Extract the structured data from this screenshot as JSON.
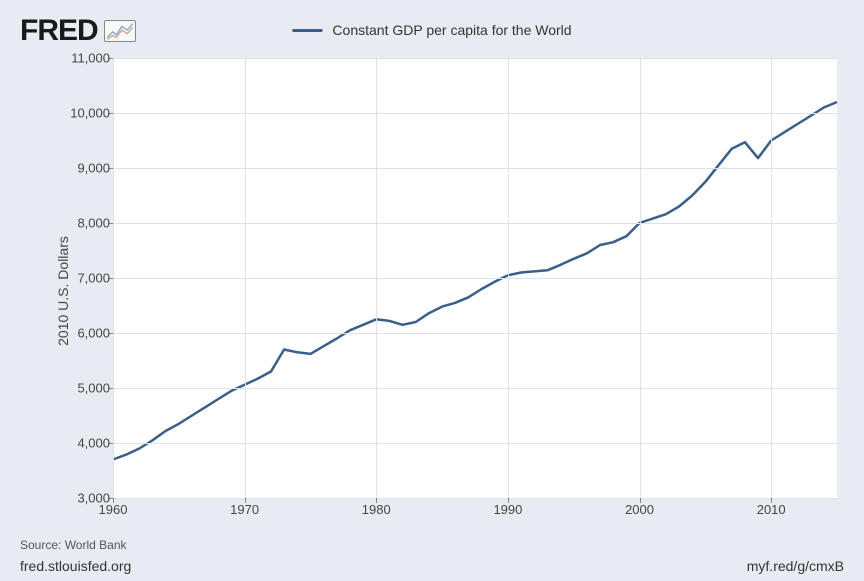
{
  "logo": {
    "text": "FRED"
  },
  "legend": {
    "label": "Constant GDP per capita for the World"
  },
  "chart": {
    "type": "line",
    "y_axis_title": "2010 U.S. Dollars",
    "line_color": "#3b5f8a",
    "line_width": 2.5,
    "background_color": "#ffffff",
    "page_background": "#e8ecf2",
    "grid_color": "#dfe3e8",
    "axis_label_color": "#444444",
    "axis_label_fontsize": 13,
    "title_fontsize": 14,
    "xlim": [
      1960,
      2015
    ],
    "ylim": [
      3000,
      11000
    ],
    "x_ticks": [
      1960,
      1970,
      1980,
      1990,
      2000,
      2010
    ],
    "y_ticks": [
      3000,
      4000,
      5000,
      6000,
      7000,
      8000,
      9000,
      10000,
      11000
    ],
    "y_tick_labels": [
      "3,000",
      "4,000",
      "5,000",
      "6,000",
      "7,000",
      "8,000",
      "9,000",
      "10,000",
      "11,000"
    ],
    "series": {
      "x": [
        1960,
        1961,
        1962,
        1963,
        1964,
        1965,
        1966,
        1967,
        1968,
        1969,
        1970,
        1971,
        1972,
        1973,
        1974,
        1975,
        1976,
        1977,
        1978,
        1979,
        1980,
        1981,
        1982,
        1983,
        1984,
        1985,
        1986,
        1987,
        1988,
        1989,
        1990,
        1991,
        1992,
        1993,
        1994,
        1995,
        1996,
        1997,
        1998,
        1999,
        2000,
        2001,
        2002,
        2003,
        2004,
        2005,
        2006,
        2007,
        2008,
        2009,
        2010,
        2011,
        2012,
        2013,
        2014,
        2015
      ],
      "y": [
        3700,
        3790,
        3900,
        4050,
        4220,
        4350,
        4500,
        4650,
        4800,
        4950,
        5060,
        5170,
        5300,
        5700,
        5650,
        5620,
        5760,
        5900,
        6050,
        6150,
        6250,
        6220,
        6150,
        6200,
        6360,
        6480,
        6550,
        6650,
        6800,
        6930,
        7050,
        7100,
        7120,
        7140,
        7240,
        7350,
        7450,
        7600,
        7650,
        7760,
        8000,
        8080,
        8160,
        8300,
        8500,
        8750,
        9050,
        9350,
        9470,
        9180,
        9500,
        9650,
        9800,
        9950,
        10100,
        10200
      ]
    }
  },
  "source": "Source: World Bank",
  "footer": {
    "left": "fred.stlouisfed.org",
    "right": "myf.red/g/cmxB"
  }
}
